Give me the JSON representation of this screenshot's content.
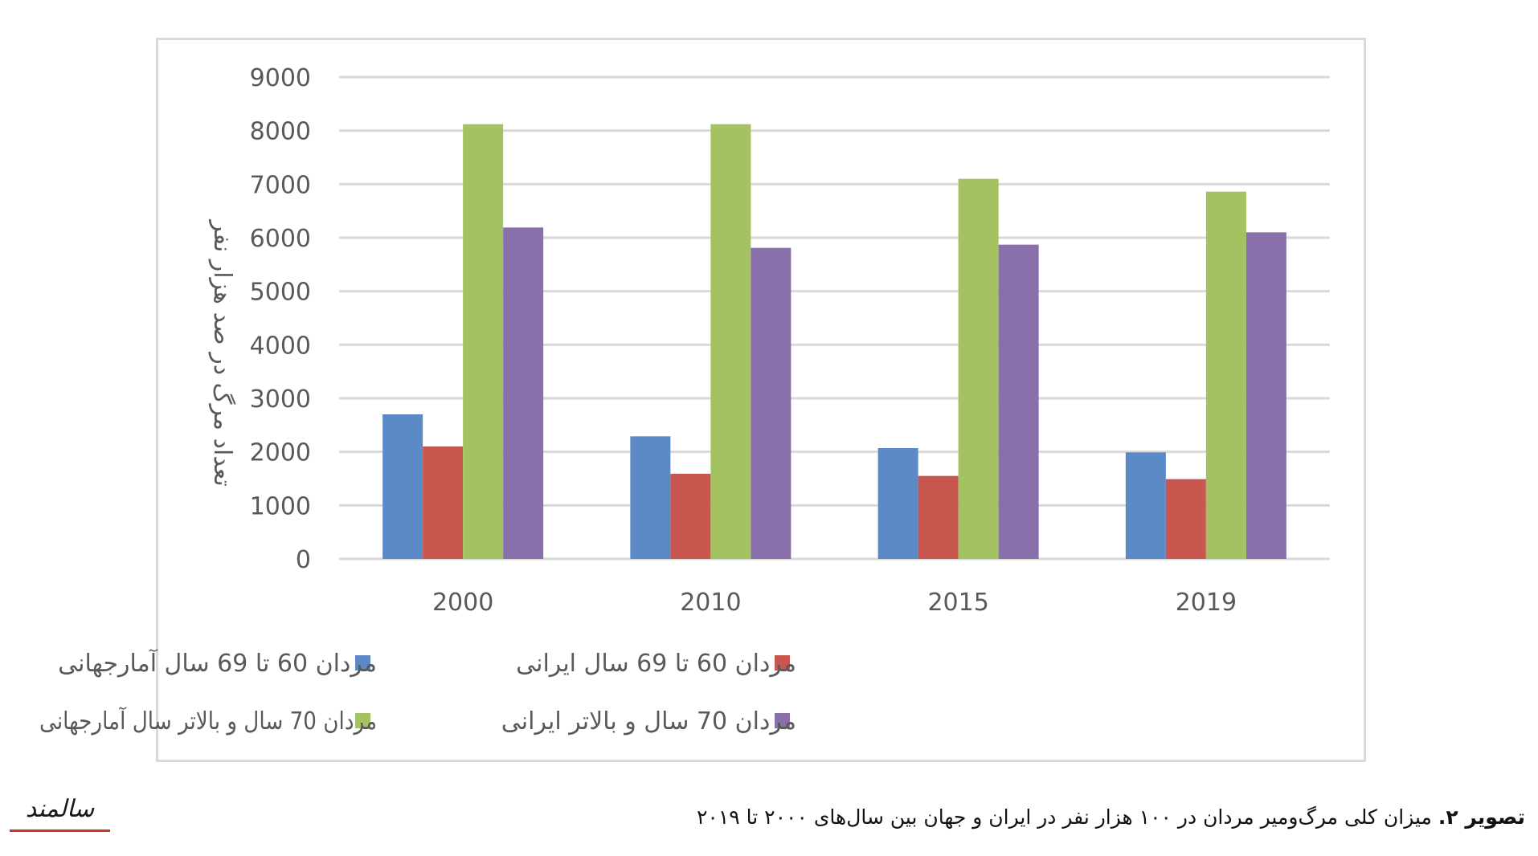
{
  "chart_data": {
    "type": "bar",
    "categories": [
      "2000",
      "2010",
      "2015",
      "2019"
    ],
    "series": [
      {
        "name": "مردان 60 تا 69 سال آمارجهانی",
        "color": "#5b8ac6",
        "values": [
          2700,
          2290,
          2070,
          1990
        ]
      },
      {
        "name": "مردان 60 تا 69 سال ایرانی",
        "color": "#c9564f",
        "values": [
          2100,
          1590,
          1550,
          1490
        ]
      },
      {
        "name": "مردان 70 سال و بالاتر سال آمارجهانی",
        "color": "#a3c363",
        "values": [
          8120,
          8120,
          7100,
          6860
        ]
      },
      {
        "name": "مردان 70 سال و بالاتر ایرانی",
        "color": "#8a70aa",
        "values": [
          6190,
          5810,
          5870,
          6100
        ]
      }
    ],
    "ylabel": "تعداد مرگ در صد هزار نفر",
    "xlabel": "",
    "ylim": [
      0,
      9000
    ],
    "yticks": [
      0,
      1000,
      2000,
      3000,
      4000,
      5000,
      6000,
      7000,
      8000,
      9000
    ],
    "grid": true,
    "legend_position": "bottom"
  },
  "caption": {
    "label": "تصویر ۲.",
    "text": " میزان کلی مرگ‌ومیر مردان در ۱۰۰ هزار نفر در ایران و جهان بین سال‌های ۲۰۰۰ تا ۲۰۱۹"
  },
  "logo": {
    "text": "سالمند",
    "accent_color": "#c0392b"
  }
}
